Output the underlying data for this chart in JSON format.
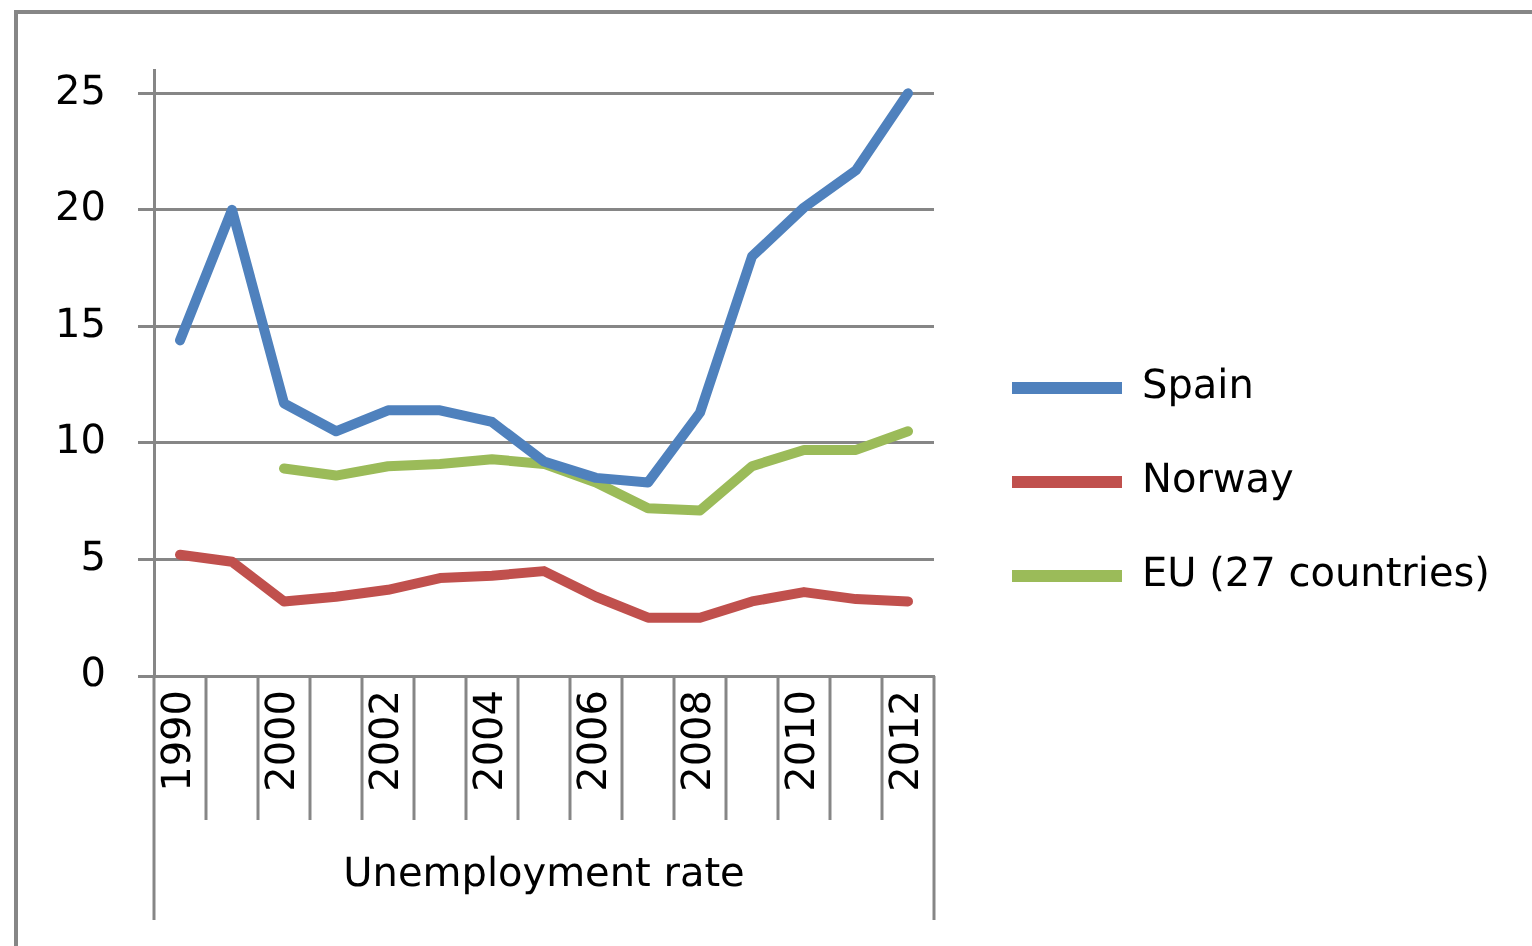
{
  "chart_data": {
    "type": "line",
    "xlabel": "Unemployment rate",
    "categories": [
      "1990",
      null,
      "2000",
      null,
      "2002",
      null,
      "2004",
      null,
      "2006",
      null,
      "2008",
      null,
      "2010",
      null,
      "2012"
    ],
    "series": [
      {
        "name": "Spain",
        "color": "#4f81bd",
        "values": [
          14.4,
          20,
          11.7,
          10.5,
          11.4,
          11.4,
          10.9,
          9.2,
          8.5,
          8.3,
          11.3,
          18,
          20.1,
          21.7,
          25
        ]
      },
      {
        "name": "Norway",
        "color": "#c0504d",
        "values": [
          5.2,
          4.9,
          3.2,
          3.4,
          3.7,
          4.2,
          4.3,
          4.5,
          3.4,
          2.5,
          2.5,
          3.2,
          3.6,
          3.3,
          3.2
        ]
      },
      {
        "name": "EU (27 countries)",
        "color": "#9bbb59",
        "values": [
          null,
          null,
          8.9,
          8.6,
          9,
          9.1,
          9.3,
          9.1,
          8.3,
          7.2,
          7.1,
          9,
          9.7,
          9.7,
          10.5
        ]
      }
    ],
    "ylim": [
      0,
      26
    ],
    "yticks": [
      0,
      5,
      10,
      15,
      20,
      25
    ],
    "grid": "y",
    "legend": "right",
    "marker": "none",
    "line_style": "solid"
  }
}
